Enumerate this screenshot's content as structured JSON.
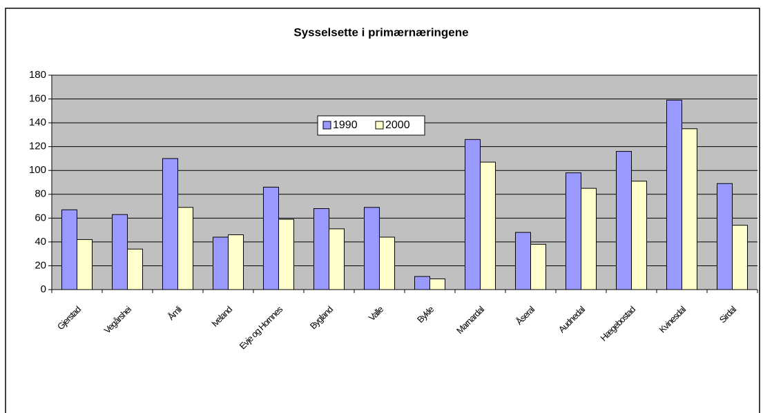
{
  "chart_data": {
    "type": "bar",
    "title": "Sysselsette i primærnæringene",
    "categories": [
      "Gjerstad",
      "Vegårshei",
      "Åmli",
      "Iveland",
      "Evje og Hornnes",
      "Bygland",
      "Valle",
      "Bykle",
      "Marnardal",
      "Åseral",
      "Audnedal",
      "Hægebostad",
      "Kvinesdal",
      "Sirdal"
    ],
    "series": [
      {
        "name": "1990",
        "color": "#9999ff",
        "values": [
          67,
          63,
          110,
          44,
          86,
          68,
          69,
          11,
          126,
          48,
          98,
          116,
          159,
          89
        ]
      },
      {
        "name": "2000",
        "color": "#ffffcc",
        "values": [
          42,
          34,
          69,
          46,
          59,
          51,
          44,
          9,
          107,
          38,
          85,
          91,
          135,
          54
        ]
      }
    ],
    "ylim": [
      0,
      180
    ],
    "yticks": [
      0,
      20,
      40,
      60,
      80,
      100,
      120,
      140,
      160,
      180
    ],
    "grid": true,
    "legend": "top"
  }
}
